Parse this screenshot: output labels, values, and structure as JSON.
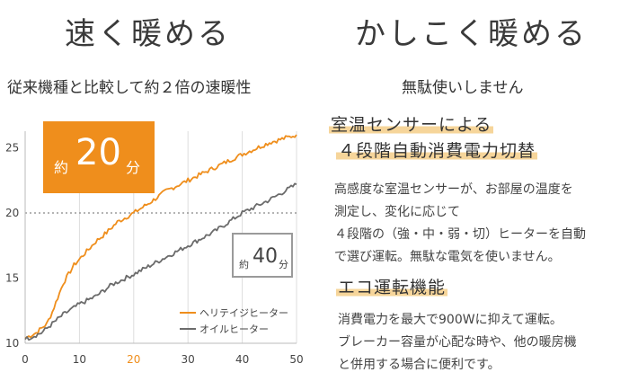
{
  "left": {
    "title": "速く暖める",
    "subtitle": "従来機種と比較して約２倍の速暖性"
  },
  "right": {
    "title": "かしこく暖める",
    "subtitle": "無駄使いしません",
    "feature1_line1": "室温センサーによる",
    "feature1_line2": "４段階自動消費電力切替",
    "feature1_body": "高感度な室温センサーが、お部屋の温度を\n測定し、変化に応じて\n４段階の（強・中・弱・切）ヒーターを自動\nで選び運転。無駄な電気を使いません。",
    "feature2_title": "エコ運転機能",
    "feature2_body": "消費電力を最大で900Wに抑えて運転。\nブレーカー容量が心配な時や、他の暖房機\nと併用する場合に便利です。"
  },
  "callouts": {
    "orange": {
      "prefix": "約",
      "value": "20",
      "unit": "分"
    },
    "gray": {
      "prefix": "約",
      "value": "40",
      "unit": "分"
    }
  },
  "chart_data": {
    "type": "line",
    "xlim": [
      0,
      50
    ],
    "ylim": [
      10,
      26
    ],
    "x_ticks": [
      0,
      10,
      20,
      30,
      40,
      50
    ],
    "y_ticks": [
      10,
      15,
      20,
      25
    ],
    "x_tick_labels": [
      "0",
      "10",
      "20",
      "30",
      "40",
      "50"
    ],
    "y_tick_labels": [
      "10",
      "15",
      "20",
      "25"
    ],
    "highlight_x_tick": 20,
    "reference_line_y": 20,
    "grid": "vertical",
    "legend_position": "bottom-right",
    "colors": {
      "orange": "#ef8e1c",
      "gray": "#6b6b6b",
      "grid": "#dddddd",
      "ref": "#888888",
      "axis_text": "#444444"
    },
    "series": [
      {
        "name": "ヘリテイジヒーター",
        "color": "#ef8e1c",
        "x": [
          0,
          2,
          4,
          5,
          7,
          9,
          11,
          13,
          15,
          17,
          20,
          23,
          26,
          30,
          35,
          40,
          45,
          50
        ],
        "y": [
          10.4,
          10.8,
          11.5,
          12.4,
          14.6,
          16.0,
          16.9,
          17.8,
          18.5,
          19.3,
          20.0,
          20.8,
          21.7,
          22.5,
          23.5,
          24.5,
          25.4,
          26.0
        ]
      },
      {
        "name": "オイルヒーター",
        "color": "#6b6b6b",
        "x": [
          0,
          3,
          5,
          7,
          10,
          13,
          16,
          20,
          25,
          30,
          35,
          40,
          45,
          50
        ],
        "y": [
          10.3,
          10.8,
          11.5,
          12.2,
          13.0,
          13.6,
          14.5,
          15.3,
          16.4,
          17.5,
          18.6,
          20.0,
          21.0,
          22.2
        ]
      }
    ]
  }
}
